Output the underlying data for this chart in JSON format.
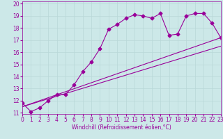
{
  "title": "",
  "xlabel": "Windchill (Refroidissement éolien,°C)",
  "bg_color": "#cce8e8",
  "grid_color": "#b8d8d8",
  "line_color": "#990099",
  "xlim": [
    0,
    23
  ],
  "ylim": [
    10.9,
    20.2
  ],
  "xticks": [
    0,
    1,
    2,
    3,
    4,
    5,
    6,
    7,
    8,
    9,
    10,
    11,
    12,
    13,
    14,
    15,
    16,
    17,
    18,
    19,
    20,
    21,
    22,
    23
  ],
  "yticks": [
    11,
    12,
    13,
    14,
    15,
    16,
    17,
    18,
    19,
    20
  ],
  "data_x": [
    0,
    1,
    2,
    3,
    4,
    5,
    6,
    7,
    8,
    9,
    10,
    11,
    12,
    13,
    14,
    15,
    16,
    17,
    18,
    19,
    20,
    21,
    22,
    23
  ],
  "data_y": [
    11.8,
    11.1,
    11.4,
    12.0,
    12.5,
    12.5,
    13.3,
    14.4,
    15.2,
    16.3,
    17.9,
    18.3,
    18.8,
    19.1,
    19.0,
    18.8,
    19.2,
    17.4,
    17.5,
    19.0,
    19.2,
    19.2,
    18.4,
    17.2
  ],
  "line1_x": [
    0,
    23
  ],
  "line1_y": [
    11.5,
    17.2
  ],
  "line2_x": [
    0,
    23
  ],
  "line2_y": [
    11.5,
    16.5
  ],
  "markersize": 2.5,
  "linewidth": 0.8,
  "tick_fontsize": 5.5,
  "xlabel_fontsize": 5.5
}
